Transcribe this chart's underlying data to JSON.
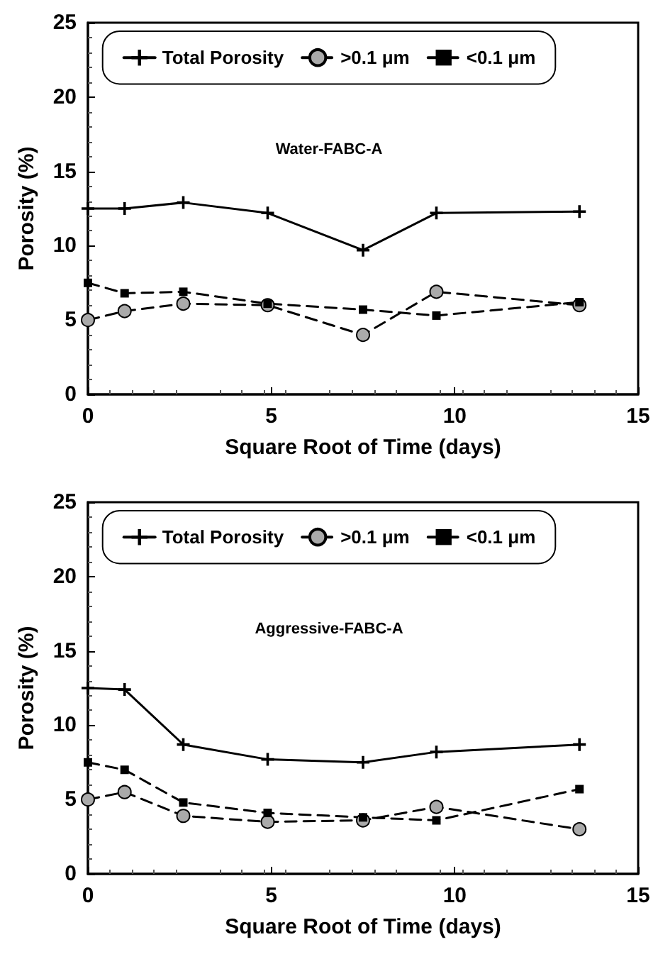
{
  "chart_data": [
    {
      "type": "line",
      "annotations": [
        "Water-FABC-A"
      ],
      "xlabel": "Square Root of Time (days)",
      "ylabel": "Porosity (%)",
      "x": [
        0,
        1,
        2.6,
        4.9,
        7.5,
        9.5,
        13.4
      ],
      "series": [
        {
          "name": "Total Porosity",
          "color": "#000000",
          "marker": "cross",
          "line_style": "solid",
          "values": [
            12.5,
            12.5,
            12.9,
            12.2,
            9.7,
            12.2,
            12.3
          ]
        },
        {
          "name": ">0.1 μm",
          "color": "#000000",
          "marker": "circle",
          "line_style": "dashed",
          "values": [
            5.0,
            5.6,
            6.1,
            6.0,
            4.0,
            6.9,
            6.0
          ]
        },
        {
          "name": "<0.1 μm",
          "color": "#000000",
          "marker": "square",
          "line_style": "dashed",
          "values": [
            7.5,
            6.8,
            6.9,
            6.1,
            5.7,
            5.3,
            6.2
          ]
        }
      ],
      "xlim": [
        0,
        15
      ],
      "xticks": [
        0,
        5,
        10,
        15
      ],
      "ylim": [
        0,
        25
      ],
      "yticks": [
        0,
        5,
        10,
        15,
        20,
        25
      ],
      "grid": false,
      "legend": "top"
    },
    {
      "type": "line",
      "annotations": [
        "Aggressive-FABC-A"
      ],
      "xlabel": "Square Root of Time (days)",
      "ylabel": "Porosity (%)",
      "x": [
        0,
        1,
        2.6,
        4.9,
        7.5,
        9.5,
        13.4
      ],
      "series": [
        {
          "name": "Total Porosity",
          "color": "#000000",
          "marker": "cross",
          "line_style": "solid",
          "values": [
            12.5,
            12.4,
            8.7,
            7.7,
            7.5,
            8.2,
            8.7
          ]
        },
        {
          "name": ">0.1 μm",
          "color": "#000000",
          "marker": "circle",
          "line_style": "dashed",
          "values": [
            5.0,
            5.5,
            3.9,
            3.5,
            3.6,
            4.5,
            3.0
          ]
        },
        {
          "name": "<0.1 μm",
          "color": "#000000",
          "marker": "square",
          "line_style": "dashed",
          "values": [
            7.5,
            7.0,
            4.8,
            4.1,
            3.8,
            3.6,
            5.7
          ]
        }
      ],
      "xlim": [
        0,
        15
      ],
      "xticks": [
        0,
        5,
        10,
        15
      ],
      "ylim": [
        0,
        25
      ],
      "yticks": [
        0,
        5,
        10,
        15,
        20,
        25
      ],
      "grid": false,
      "legend": "top"
    }
  ]
}
